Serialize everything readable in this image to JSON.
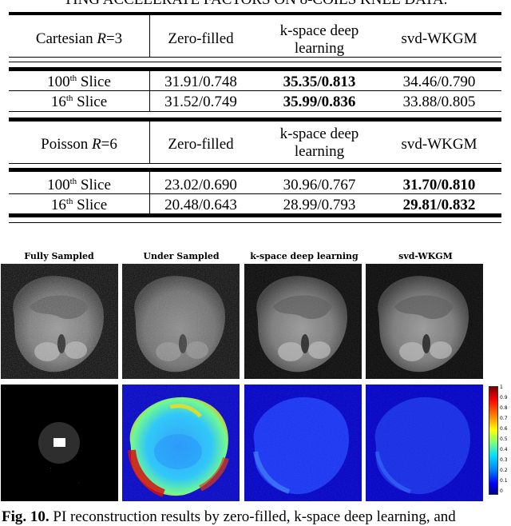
{
  "table": {
    "caption": "TING ACCELERATE FACTORS ON 8-COILS KNEE DATA.",
    "section1": {
      "header": [
        "Cartesian R=3",
        "Zero-filled",
        "k-space deep learning",
        "svd-WKGM"
      ],
      "rows": [
        {
          "slice_num": "100",
          "sup": "th",
          "slice_word": " Slice",
          "zero": "31.91/0.748",
          "kspace": "35.35/0.813",
          "svd": "34.46/0.790",
          "best": "kspace"
        },
        {
          "slice_num": "16",
          "sup": "th",
          "slice_word": " Slice",
          "zero": "31.52/0.749",
          "kspace": "35.99/0.836",
          "svd": "33.88/0.805",
          "best": "kspace"
        }
      ]
    },
    "section2": {
      "header": [
        "Poisson R=6",
        "Zero-filled",
        "k-space deep learning",
        "svd-WKGM"
      ],
      "rows": [
        {
          "slice_num": "100",
          "sup": "th",
          "slice_word": " Slice",
          "zero": "23.02/0.690",
          "kspace": "30.96/0.767",
          "svd": "31.70/0.810",
          "best": "svd"
        },
        {
          "slice_num": "16",
          "sup": "th",
          "slice_word": " Slice",
          "zero": "20.48/0.643",
          "kspace": "28.99/0.793",
          "svd": "29.81/0.832",
          "best": "svd"
        }
      ]
    }
  },
  "figure": {
    "labels": [
      "Fully Sampled",
      "Under Sampled",
      "k-space deep learning",
      "svd-WKGM"
    ],
    "colorbar_ticks": [
      "1",
      "0.9",
      "0.8",
      "0.7",
      "0.6",
      "0.5",
      "0.4",
      "0.3",
      "0.2",
      "0.1",
      "0"
    ],
    "caption_prefix": "Fig. 10.",
    "caption_text": " PI reconstruction results by zero-filled, k-space deep learning, and"
  }
}
